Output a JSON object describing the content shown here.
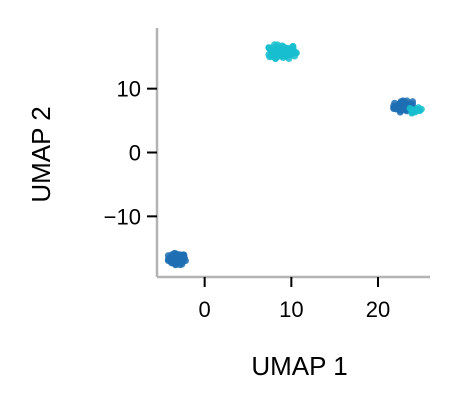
{
  "chart_data": {
    "type": "scatter",
    "xlabel": "UMAP 1",
    "ylabel": "UMAP 2",
    "xlim": [
      -5.5,
      26
    ],
    "ylim": [
      -19.5,
      19.5
    ],
    "xticks": [
      0,
      10,
      20
    ],
    "xtick_labels": [
      "0",
      "10",
      "20"
    ],
    "yticks": [
      -10,
      0,
      10
    ],
    "ytick_labels": [
      "−10",
      "0",
      "10"
    ],
    "grid": false,
    "colors": {
      "axis": "#b3b3b3",
      "dark_blue": "#1f6fb4",
      "cyan": "#17becf"
    },
    "clusters": [
      {
        "color": "dark_blue",
        "center": [
          -3.2,
          -16.7
        ],
        "spread": [
          0.5,
          0.45
        ],
        "count": 80
      },
      {
        "color": "cyan",
        "center": [
          9.0,
          15.8
        ],
        "spread": [
          0.8,
          0.55
        ],
        "count": 110
      },
      {
        "color": "dark_blue",
        "center": [
          22.9,
          7.2
        ],
        "spread": [
          0.55,
          0.45
        ],
        "count": 70
      },
      {
        "color": "cyan",
        "center": [
          24.3,
          6.6
        ],
        "spread": [
          0.4,
          0.22
        ],
        "count": 14
      }
    ]
  }
}
